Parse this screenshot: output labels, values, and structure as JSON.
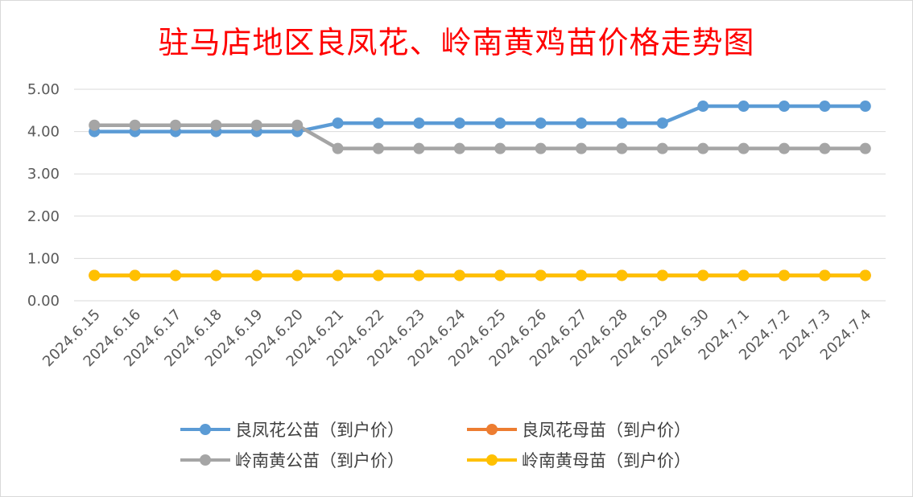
{
  "chart_data": {
    "type": "line",
    "title": "驻马店地区良凤花、岭南黄鸡苗价格走势图",
    "xlabel": "",
    "ylabel": "",
    "ylim": [
      0,
      5
    ],
    "yticks": [
      "0.00",
      "1.00",
      "2.00",
      "3.00",
      "4.00",
      "5.00"
    ],
    "grid": true,
    "legend_position": "bottom",
    "categories": [
      "2024.6.15",
      "2024.6.16",
      "2024.6.17",
      "2024.6.18",
      "2024.6.19",
      "2024.6.20",
      "2024.6.21",
      "2024.6.22",
      "2024.6.23",
      "2024.6.24",
      "2024.6.25",
      "2024.6.26",
      "2024.6.27",
      "2024.6.28",
      "2024.6.29",
      "2024.6.30",
      "2024.7.1",
      "2024.7.2",
      "2024.7.3",
      "2024.7.4"
    ],
    "series": [
      {
        "name": "良凤花公苗（到户价）",
        "color": "#5b9bd5",
        "values": [
          4.0,
          4.0,
          4.0,
          4.0,
          4.0,
          4.0,
          4.2,
          4.2,
          4.2,
          4.2,
          4.2,
          4.2,
          4.2,
          4.2,
          4.2,
          4.6,
          4.6,
          4.6,
          4.6,
          4.6
        ]
      },
      {
        "name": "良凤花母苗（到户价）",
        "color": "#ed7d31",
        "values": [
          0.6,
          0.6,
          0.6,
          0.6,
          0.6,
          0.6,
          0.6,
          0.6,
          0.6,
          0.6,
          0.6,
          0.6,
          0.6,
          0.6,
          0.6,
          0.6,
          0.6,
          0.6,
          0.6,
          0.6
        ]
      },
      {
        "name": "岭南黄公苗（到户价）",
        "color": "#a5a5a5",
        "values": [
          4.15,
          4.15,
          4.15,
          4.15,
          4.15,
          4.15,
          3.6,
          3.6,
          3.6,
          3.6,
          3.6,
          3.6,
          3.6,
          3.6,
          3.6,
          3.6,
          3.6,
          3.6,
          3.6,
          3.6
        ]
      },
      {
        "name": "岭南黄母苗（到户价）",
        "color": "#ffc000",
        "values": [
          0.6,
          0.6,
          0.6,
          0.6,
          0.6,
          0.6,
          0.6,
          0.6,
          0.6,
          0.6,
          0.6,
          0.6,
          0.6,
          0.6,
          0.6,
          0.6,
          0.6,
          0.6,
          0.6,
          0.6
        ]
      }
    ]
  }
}
